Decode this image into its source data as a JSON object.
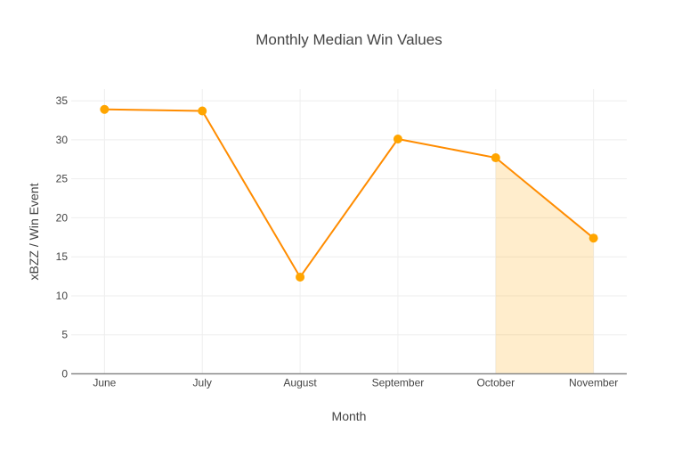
{
  "chart_data": {
    "type": "line",
    "title": "Monthly Median Win Values",
    "xlabel": "Month",
    "ylabel": "xBZZ / Win Event",
    "categories": [
      "June",
      "July",
      "August",
      "September",
      "October",
      "November"
    ],
    "series": [
      {
        "values": [
          33.9,
          33.7,
          12.4,
          30.1,
          27.7,
          17.4
        ],
        "line_color": "#ff8c00",
        "marker_color": "#ffa500"
      }
    ],
    "highlight_fill": {
      "from": "October",
      "to": "November",
      "color": "rgba(255,165,0,0.2)"
    },
    "ylim": [
      0,
      36.5
    ],
    "yticks": [
      0,
      5,
      10,
      15,
      20,
      25,
      30,
      35
    ],
    "grid": true
  }
}
